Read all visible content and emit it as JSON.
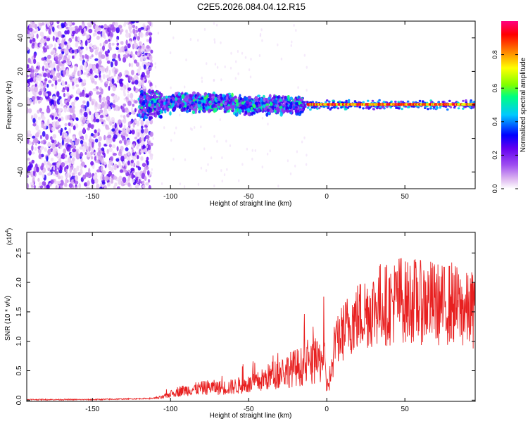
{
  "title": "C2E5.2026.084.04.12.R15",
  "chart_data": [
    {
      "type": "heatmap",
      "name": "spectrogram",
      "xlabel": "Height of straight line (km)",
      "ylabel": "Frequency (Hz)",
      "xlim": [
        -192,
        95
      ],
      "ylim": [
        -50,
        50
      ],
      "xticks": [
        -150,
        -100,
        -50,
        0,
        50
      ],
      "yticks": [
        -40,
        -20,
        0,
        20,
        40
      ],
      "colorbar": {
        "label": "Normalized spectral amplitude",
        "range": [
          0,
          1
        ],
        "ticks": [
          0.0,
          0.2,
          0.4,
          0.6,
          0.8
        ],
        "colors": [
          "#ffffff",
          "#dcb4f0",
          "#a050f0",
          "#6400f0",
          "#0000ff",
          "#00c8ff",
          "#00ff80",
          "#80ff00",
          "#ffff00",
          "#ff8000",
          "#ff0000",
          "#ff0080"
        ]
      },
      "regions": [
        {
          "x_range": [
            -192,
            -112
          ],
          "freq_spread": 50,
          "amplitude": "0.05-0.3",
          "description_color": "#8a4af0"
        },
        {
          "x_range": [
            -120,
            -15
          ],
          "freq_spread": 10,
          "amplitude": "0.2-0.6"
        },
        {
          "x_range": [
            -15,
            95
          ],
          "freq_spread": 3,
          "amplitude": "0.6-1.0",
          "center_freq": 0
        }
      ]
    },
    {
      "type": "line",
      "name": "snr",
      "xlabel": "Height of straight line (km)",
      "ylabel": "SNR (10 * v/v)",
      "scale_label": "(x10",
      "scale_exponent": "4",
      "scale_close": ")",
      "xlim": [
        -192,
        95
      ],
      "ylim": [
        -0.02,
        2.85
      ],
      "xticks": [
        -150,
        -100,
        -50,
        0,
        50
      ],
      "yticks": [
        0.0,
        0.5,
        1.0,
        1.5,
        2.0,
        2.5
      ],
      "line_color": "#e82020",
      "series": [
        {
          "name": "SNR",
          "x": [
            -192,
            -170,
            -150,
            -130,
            -112,
            -105,
            -100,
            -95,
            -90,
            -85,
            -80,
            -75,
            -70,
            -65,
            -60,
            -55,
            -50,
            -45,
            -40,
            -35,
            -30,
            -25,
            -20,
            -15,
            -10,
            -5,
            -2,
            0,
            3,
            5,
            8,
            12,
            15,
            20,
            25,
            30,
            35,
            40,
            45,
            48,
            50,
            55,
            60,
            65,
            70,
            75,
            80,
            85,
            90,
            95
          ],
          "values": [
            0.01,
            0.01,
            0.01,
            0.02,
            0.03,
            0.06,
            0.12,
            0.18,
            0.2,
            0.22,
            0.24,
            0.26,
            0.25,
            0.25,
            0.27,
            0.3,
            0.3,
            0.35,
            0.42,
            0.5,
            0.55,
            0.6,
            0.65,
            0.68,
            0.7,
            0.75,
            0.9,
            0.25,
            0.55,
            0.9,
            1.1,
            1.25,
            1.35,
            1.45,
            1.55,
            1.6,
            1.7,
            1.65,
            1.75,
            1.8,
            1.7,
            1.75,
            1.7,
            1.72,
            1.68,
            1.65,
            1.7,
            1.6,
            1.55,
            1.6
          ]
        }
      ]
    }
  ]
}
